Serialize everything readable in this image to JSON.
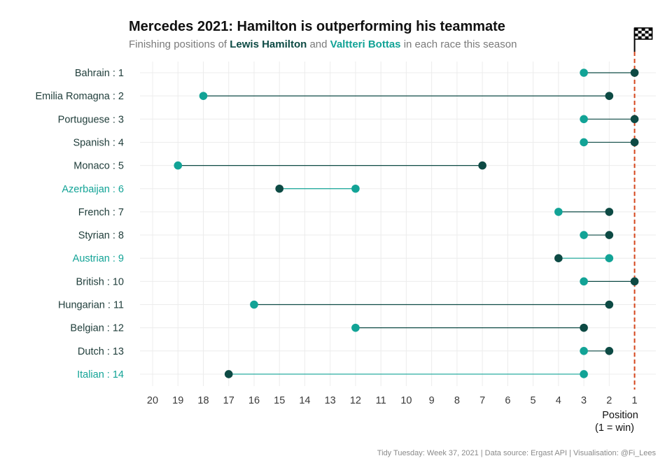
{
  "chart_data": {
    "type": "dumbbell",
    "title": "Mercedes 2021: Hamilton is outperforming his teammate",
    "subtitle": {
      "prefix": "Finishing positions of ",
      "hamilton": "Lewis Hamilton",
      "middle": " and ",
      "bottas": "Valtteri Bottas",
      "suffix": " in each race this season"
    },
    "xlabel_line1": "Position",
    "xlabel_line2": "(1 = win)",
    "caption": "Tidy Tuesday: Week 37, 2021 | Data source: Ergast API | Visualisation: @Fi_Lees",
    "x_ticks": [
      20,
      19,
      18,
      17,
      16,
      15,
      14,
      13,
      12,
      11,
      10,
      9,
      8,
      7,
      6,
      5,
      4,
      3,
      2,
      1
    ],
    "xlim": [
      20,
      1
    ],
    "x_reversed": true,
    "grid": true,
    "reference_line": {
      "x": 1,
      "style": "dashed",
      "color": "#d5451b"
    },
    "flag_icon": "checkered-flag-icon",
    "colors": {
      "hamilton": "#0d4a44",
      "bottas": "#12a396",
      "text_default": "#1f3d3a",
      "text_bottas_wins": "#12a396"
    },
    "series": [
      {
        "name": "Lewis Hamilton",
        "key": "hamilton"
      },
      {
        "name": "Valtteri Bottas",
        "key": "bottas"
      }
    ],
    "races": [
      {
        "label": "Bahrain : 1",
        "hamilton": 1,
        "bottas": 3
      },
      {
        "label": "Emilia Romagna : 2",
        "hamilton": 2,
        "bottas": 18
      },
      {
        "label": "Portuguese : 3",
        "hamilton": 1,
        "bottas": 3
      },
      {
        "label": "Spanish : 4",
        "hamilton": 1,
        "bottas": 3
      },
      {
        "label": "Monaco : 5",
        "hamilton": 7,
        "bottas": 19
      },
      {
        "label": "Azerbaijan : 6",
        "hamilton": 15,
        "bottas": 12
      },
      {
        "label": "French : 7",
        "hamilton": 2,
        "bottas": 4
      },
      {
        "label": "Styrian : 8",
        "hamilton": 2,
        "bottas": 3
      },
      {
        "label": "Austrian : 9",
        "hamilton": 4,
        "bottas": 2
      },
      {
        "label": "British : 10",
        "hamilton": 1,
        "bottas": 3
      },
      {
        "label": "Hungarian : 11",
        "hamilton": 2,
        "bottas": 16
      },
      {
        "label": "Belgian : 12",
        "hamilton": 3,
        "bottas": 12
      },
      {
        "label": "Dutch : 13",
        "hamilton": 2,
        "bottas": 3
      },
      {
        "label": "Italian : 14",
        "hamilton": 17,
        "bottas": 3
      }
    ]
  }
}
